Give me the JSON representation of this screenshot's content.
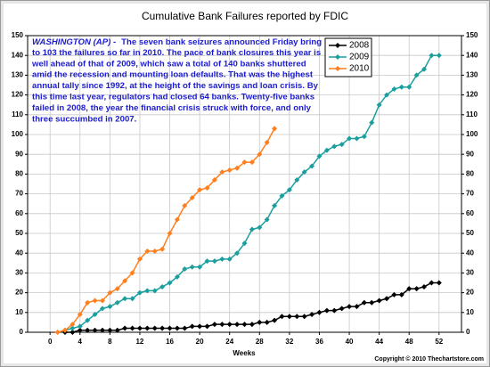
{
  "chart_data": {
    "type": "line",
    "title": "Cumulative Bank Failures reported by FDIC",
    "x_label": "Weeks",
    "copyright": "Copyright © 2010 Thechartstore.com",
    "annotation_dateline": "WASHINGTON (AP) -",
    "annotation": [
      "The seven bank seizures announced Friday bring",
      "to 103 the failures so far in 2010. The pace of bank closures this year is",
      "well ahead of that of 2009, which saw a total of 140 banks shuttered",
      "amid the recession and mounting loan defaults. That was the highest",
      "annual tally since 1992, at the height of the savings and loan crisis.  By",
      "this time last year, regulators had closed 64 banks.  Twenty-five banks",
      "failed in 2008, the year the financial crisis struck with force, and only",
      "three succumbed in 2007."
    ],
    "x": [
      1,
      2,
      3,
      4,
      5,
      6,
      7,
      8,
      9,
      10,
      11,
      12,
      13,
      14,
      15,
      16,
      17,
      18,
      19,
      20,
      21,
      22,
      23,
      24,
      25,
      26,
      27,
      28,
      29,
      30,
      31,
      32,
      33,
      34,
      35,
      36,
      37,
      38,
      39,
      40,
      41,
      42,
      43,
      44,
      45,
      46,
      47,
      48,
      49,
      50,
      51,
      52
    ],
    "series": [
      {
        "name": "2008",
        "color": "#000000",
        "values": [
          null,
          0,
          0,
          1,
          1,
          1,
          1,
          1,
          1,
          2,
          2,
          2,
          2,
          2,
          2,
          2,
          2,
          2,
          3,
          3,
          3,
          4,
          4,
          4,
          4,
          4,
          4,
          5,
          5,
          6,
          8,
          8,
          8,
          8,
          9,
          10,
          11,
          11,
          12,
          13,
          13,
          15,
          15,
          16,
          17,
          19,
          19,
          22,
          22,
          23,
          25,
          25
        ]
      },
      {
        "name": "2009",
        "color": "#1b9e9e",
        "values": [
          null,
          1,
          2,
          3,
          6,
          9,
          12,
          13,
          15,
          17,
          17,
          20,
          21,
          21,
          23,
          25,
          28,
          32,
          33,
          33,
          36,
          36,
          37,
          37,
          40,
          45,
          52,
          53,
          57,
          64,
          69,
          72,
          77,
          81,
          84,
          89,
          92,
          94,
          95,
          98,
          98,
          99,
          106,
          115,
          120,
          123,
          124,
          124,
          130,
          133,
          140,
          140
        ]
      },
      {
        "name": "2010",
        "color": "#ff7f1e",
        "values": [
          0,
          1,
          4,
          9,
          15,
          16,
          16,
          20,
          22,
          26,
          30,
          37,
          41,
          41,
          42,
          50,
          57,
          64,
          68,
          72,
          73,
          77,
          81,
          82,
          83,
          86,
          86,
          90,
          96,
          103,
          null,
          null,
          null,
          null,
          null,
          null,
          null,
          null,
          null,
          null,
          null,
          null,
          null,
          null,
          null,
          null,
          null,
          null,
          null,
          null,
          null,
          null
        ]
      }
    ],
    "xlim": [
      -3,
      55
    ],
    "xticks": [
      0,
      4,
      8,
      12,
      16,
      20,
      24,
      28,
      32,
      36,
      40,
      44,
      48,
      52
    ],
    "ylim": [
      0,
      150
    ],
    "yticks": [
      0,
      10,
      20,
      30,
      40,
      50,
      60,
      70,
      80,
      90,
      100,
      110,
      120,
      130,
      140,
      150
    ],
    "grid": true,
    "legend": "upper right"
  }
}
